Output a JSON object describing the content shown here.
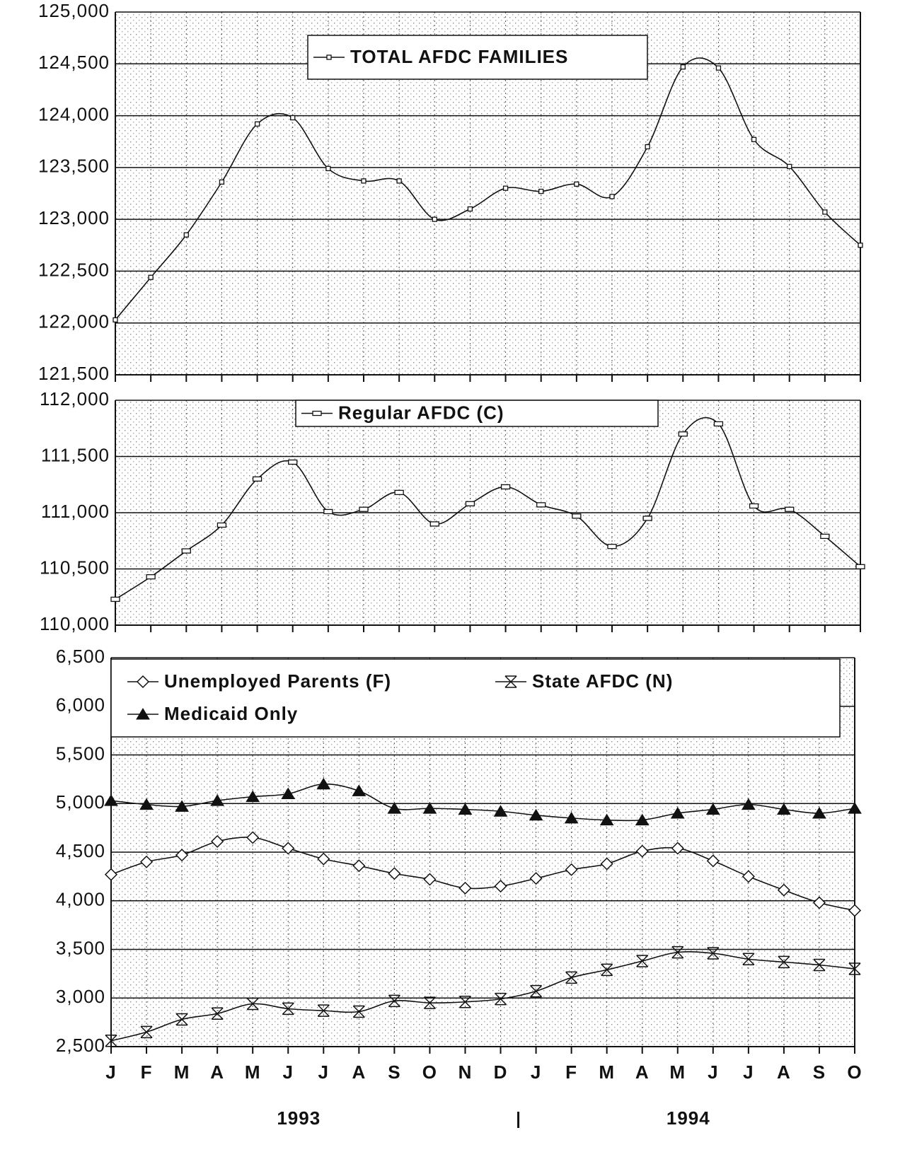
{
  "chart_data": [
    {
      "type": "line",
      "categories": [
        "J",
        "F",
        "M",
        "A",
        "M",
        "J",
        "J",
        "A",
        "S",
        "O",
        "N",
        "D",
        "J",
        "F",
        "M",
        "A",
        "M",
        "J",
        "J",
        "A",
        "S",
        "O"
      ],
      "series": [
        {
          "name": "TOTAL AFDC FAMILIES",
          "color": "#111111",
          "marker": "square",
          "values": [
            122030,
            122440,
            122850,
            123360,
            123920,
            123980,
            123490,
            123370,
            123370,
            123000,
            123100,
            123300,
            123270,
            123340,
            123220,
            123700,
            124470,
            124460,
            123770,
            123510,
            123070,
            122750
          ]
        }
      ],
      "ylim": [
        121500,
        125000
      ],
      "yticks": [
        {
          "value": 121500,
          "label": "121,500"
        },
        {
          "value": 122000,
          "label": "122,000"
        },
        {
          "value": 122500,
          "label": "122,500"
        },
        {
          "value": 123000,
          "label": "123,000"
        },
        {
          "value": 123500,
          "label": "123,500"
        },
        {
          "value": 124000,
          "label": "124,000"
        },
        {
          "value": 124500,
          "label": "124,500"
        },
        {
          "value": 125000,
          "label": "125,000"
        }
      ],
      "grid": true,
      "legend": "top"
    },
    {
      "type": "line",
      "categories": [
        "J",
        "F",
        "M",
        "A",
        "M",
        "J",
        "J",
        "A",
        "S",
        "O",
        "N",
        "D",
        "J",
        "F",
        "M",
        "A",
        "M",
        "J",
        "J",
        "A",
        "S",
        "O"
      ],
      "series": [
        {
          "name": "Regular AFDC (C)",
          "color": "#111111",
          "marker": "rect",
          "values": [
            110230,
            110430,
            110660,
            110890,
            111300,
            111450,
            111010,
            111030,
            111180,
            110900,
            111080,
            111230,
            111070,
            110970,
            110700,
            110950,
            111700,
            111790,
            111060,
            111030,
            110790,
            110520
          ]
        }
      ],
      "ylim": [
        110000,
        112000
      ],
      "yticks": [
        {
          "value": 110000,
          "label": "110,000"
        },
        {
          "value": 110500,
          "label": "110,500"
        },
        {
          "value": 111000,
          "label": "111,000"
        },
        {
          "value": 111500,
          "label": "111,500"
        },
        {
          "value": 112000,
          "label": "112,000"
        }
      ],
      "grid": true,
      "legend": "top"
    },
    {
      "type": "line",
      "categories": [
        "J",
        "F",
        "M",
        "A",
        "M",
        "J",
        "J",
        "A",
        "S",
        "O",
        "N",
        "D",
        "J",
        "F",
        "M",
        "A",
        "M",
        "J",
        "J",
        "A",
        "S",
        "O"
      ],
      "x_group_labels": [
        "1993",
        "1994"
      ],
      "series": [
        {
          "name": "Unemployed Parents (F)",
          "color": "#111111",
          "marker": "diamond",
          "values": [
            4270,
            4400,
            4470,
            4610,
            4650,
            4540,
            4430,
            4360,
            4280,
            4220,
            4130,
            4150,
            4230,
            4320,
            4380,
            4510,
            4540,
            4410,
            4250,
            4110,
            3980,
            3900
          ]
        },
        {
          "name": "State AFDC (N)",
          "color": "#111111",
          "marker": "hourglass",
          "values": [
            2560,
            2650,
            2780,
            2840,
            2940,
            2890,
            2870,
            2860,
            2970,
            2950,
            2960,
            2990,
            3070,
            3210,
            3290,
            3380,
            3470,
            3460,
            3400,
            3370,
            3340,
            3300
          ]
        },
        {
          "name": "Medicaid Only",
          "color": "#111111",
          "marker": "triangle",
          "values": [
            5030,
            4990,
            4970,
            5030,
            5070,
            5100,
            5200,
            5130,
            4950,
            4950,
            4940,
            4920,
            4880,
            4850,
            4830,
            4830,
            4900,
            4940,
            4990,
            4940,
            4900,
            4950
          ]
        }
      ],
      "ylim": [
        2500,
        6500
      ],
      "yticks": [
        {
          "value": 2500,
          "label": "2,500"
        },
        {
          "value": 3000,
          "label": "3,000"
        },
        {
          "value": 3500,
          "label": "3,500"
        },
        {
          "value": 4000,
          "label": "4,000"
        },
        {
          "value": 4500,
          "label": "4,500"
        },
        {
          "value": 5000,
          "label": "5,000"
        },
        {
          "value": 5500,
          "label": "5,500"
        },
        {
          "value": 6000,
          "label": "6,000"
        },
        {
          "value": 6500,
          "label": "6,500"
        }
      ],
      "grid": true,
      "legend": "top-left"
    }
  ]
}
